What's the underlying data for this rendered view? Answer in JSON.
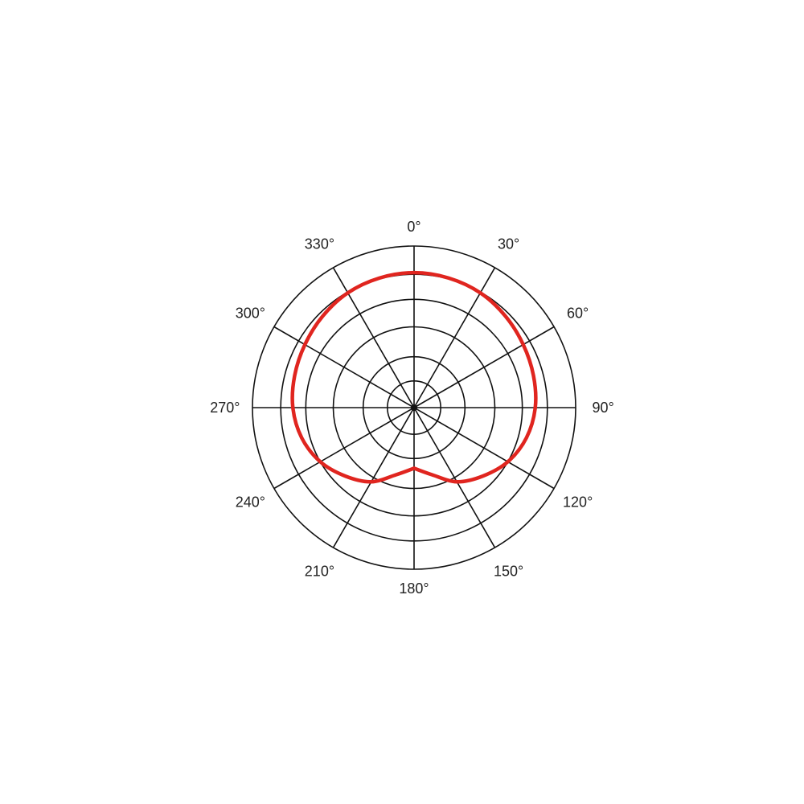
{
  "chart_data": {
    "type": "polar",
    "title": "",
    "angle_unit": "degrees",
    "angle_direction": "clockwise",
    "zero_location": "top",
    "angle_tick_labels": [
      "0°",
      "30°",
      "60°",
      "90°",
      "120°",
      "150°",
      "180°",
      "210°",
      "240°",
      "270°",
      "300°",
      "330°"
    ],
    "radial_rings": [
      0.165,
      0.315,
      0.5,
      0.67,
      0.825,
      1.0
    ],
    "radial_range": [
      0,
      1
    ],
    "grid": true,
    "series": [
      {
        "color": "#e0251f",
        "theta": [
          0,
          15,
          30,
          45,
          60,
          75,
          90,
          105,
          120,
          135,
          150,
          165,
          180,
          195,
          210,
          225,
          240,
          255,
          270,
          285,
          300,
          315,
          330,
          345
        ],
        "r": [
          0.835,
          0.83,
          0.82,
          0.8,
          0.78,
          0.765,
          0.75,
          0.72,
          0.67,
          0.6,
          0.53,
          0.43,
          0.375,
          0.43,
          0.53,
          0.6,
          0.67,
          0.72,
          0.75,
          0.765,
          0.78,
          0.8,
          0.82,
          0.83
        ]
      }
    ]
  }
}
